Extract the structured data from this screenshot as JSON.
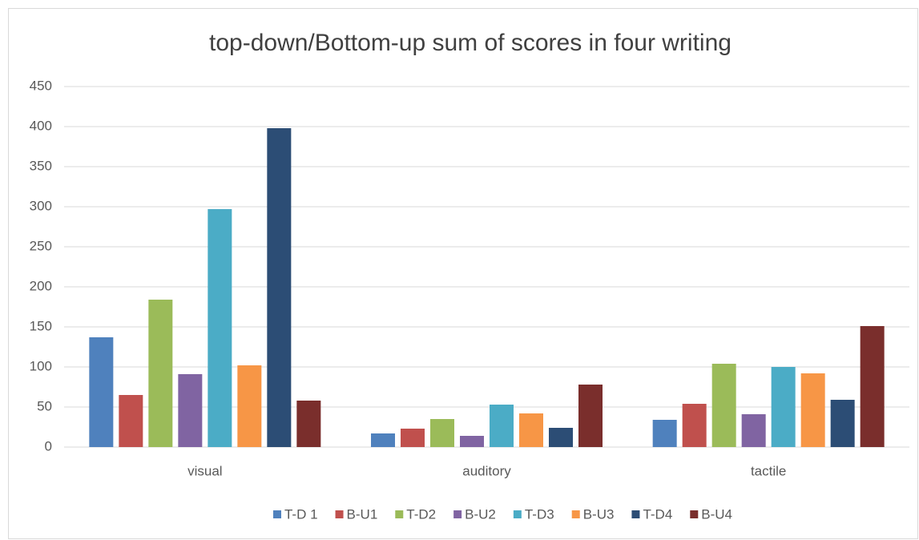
{
  "chart_data": {
    "type": "bar",
    "title": "top-down/Bottom-up sum of scores in four writing",
    "categories": [
      "visual",
      "auditory",
      "tactile"
    ],
    "series": [
      {
        "name": "T-D 1",
        "color": "#4f81bd",
        "values": [
          137,
          17,
          34
        ]
      },
      {
        "name": "B-U1",
        "color": "#c0504d",
        "values": [
          65,
          23,
          54
        ]
      },
      {
        "name": "T-D2",
        "color": "#9bbb59",
        "values": [
          184,
          35,
          104
        ]
      },
      {
        "name": "B-U2",
        "color": "#8064a2",
        "values": [
          91,
          14,
          41
        ]
      },
      {
        "name": "T-D3",
        "color": "#4bacc6",
        "values": [
          297,
          53,
          100
        ]
      },
      {
        "name": "B-U3",
        "color": "#f79646",
        "values": [
          102,
          42,
          92
        ]
      },
      {
        "name": "T-D4",
        "color": "#2c4d75",
        "values": [
          398,
          24,
          59
        ]
      },
      {
        "name": "B-U4",
        "color": "#7a2e2c",
        "values": [
          58,
          78,
          151
        ]
      }
    ],
    "ylim": [
      0,
      450
    ],
    "yticks": [
      0,
      50,
      100,
      150,
      200,
      250,
      300,
      350,
      400,
      450
    ],
    "grid": true,
    "legend": "bottom"
  }
}
